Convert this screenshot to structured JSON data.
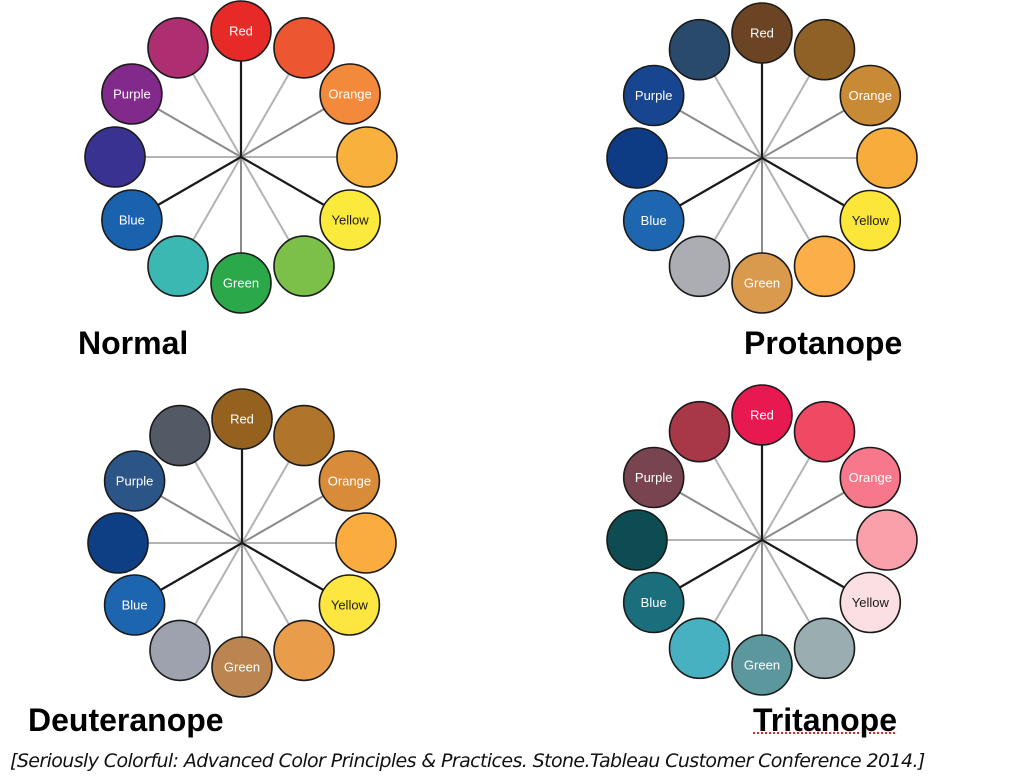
{
  "wheels": [
    {
      "id": "normal",
      "title": "Normal",
      "slots": [
        {
          "label": "Red",
          "fill": "#e52a28",
          "text": "#ffffff"
        },
        {
          "label": "",
          "fill": "#ec5630",
          "text": "#ffffff"
        },
        {
          "label": "Orange",
          "fill": "#f3893a",
          "text": "#ffffff"
        },
        {
          "label": "",
          "fill": "#f8b13c",
          "text": "#ffffff"
        },
        {
          "label": "Yellow",
          "fill": "#fbe93c",
          "text": "#1a1a1a"
        },
        {
          "label": "",
          "fill": "#7cc04a",
          "text": "#ffffff"
        },
        {
          "label": "Green",
          "fill": "#2ba84a",
          "text": "#ffffff"
        },
        {
          "label": "",
          "fill": "#3bb8b2",
          "text": "#ffffff"
        },
        {
          "label": "Blue",
          "fill": "#1a62ad",
          "text": "#ffffff"
        },
        {
          "label": "",
          "fill": "#383391",
          "text": "#ffffff"
        },
        {
          "label": "Purple",
          "fill": "#812a8b",
          "text": "#ffffff"
        },
        {
          "label": "",
          "fill": "#ae2e72",
          "text": "#ffffff"
        }
      ]
    },
    {
      "id": "protanope",
      "title": "Protanope",
      "slots": [
        {
          "label": "Red",
          "fill": "#6b4423",
          "text": "#ffffff"
        },
        {
          "label": "",
          "fill": "#8f6126",
          "text": "#ffffff"
        },
        {
          "label": "Orange",
          "fill": "#c88a35",
          "text": "#ffffff"
        },
        {
          "label": "",
          "fill": "#f8ac3b",
          "text": "#ffffff"
        },
        {
          "label": "Yellow",
          "fill": "#fde63a",
          "text": "#1a1a1a"
        },
        {
          "label": "",
          "fill": "#fcae48",
          "text": "#ffffff"
        },
        {
          "label": "Green",
          "fill": "#d99a4e",
          "text": "#ffffff"
        },
        {
          "label": "",
          "fill": "#abadb3",
          "text": "#ffffff"
        },
        {
          "label": "Blue",
          "fill": "#1e67b0",
          "text": "#ffffff"
        },
        {
          "label": "",
          "fill": "#0e3c84",
          "text": "#ffffff"
        },
        {
          "label": "Purple",
          "fill": "#17458f",
          "text": "#ffffff"
        },
        {
          "label": "",
          "fill": "#2a4a6c",
          "text": "#ffffff"
        }
      ]
    },
    {
      "id": "deuteranope",
      "title": "Deuteranope",
      "slots": [
        {
          "label": "Red",
          "fill": "#94611f",
          "text": "#ffffff"
        },
        {
          "label": "",
          "fill": "#b0752a",
          "text": "#ffffff"
        },
        {
          "label": "Orange",
          "fill": "#d88b38",
          "text": "#ffffff"
        },
        {
          "label": "",
          "fill": "#fbac3e",
          "text": "#ffffff"
        },
        {
          "label": "Yellow",
          "fill": "#fde640",
          "text": "#1a1a1a"
        },
        {
          "label": "",
          "fill": "#e99d4b",
          "text": "#ffffff"
        },
        {
          "label": "Green",
          "fill": "#ba8550",
          "text": "#ffffff"
        },
        {
          "label": "",
          "fill": "#9ea2ae",
          "text": "#ffffff"
        },
        {
          "label": "Blue",
          "fill": "#1e65b0",
          "text": "#ffffff"
        },
        {
          "label": "",
          "fill": "#0e3f85",
          "text": "#ffffff"
        },
        {
          "label": "Purple",
          "fill": "#2b5487",
          "text": "#ffffff"
        },
        {
          "label": "",
          "fill": "#535a66",
          "text": "#ffffff"
        }
      ]
    },
    {
      "id": "tritanope",
      "title": "Tritanope",
      "slots": [
        {
          "label": "Red",
          "fill": "#e81950",
          "text": "#ffffff"
        },
        {
          "label": "",
          "fill": "#ef4964",
          "text": "#ffffff"
        },
        {
          "label": "Orange",
          "fill": "#f6788a",
          "text": "#ffffff"
        },
        {
          "label": "",
          "fill": "#f9a0aa",
          "text": "#ffffff"
        },
        {
          "label": "Yellow",
          "fill": "#fcdfe2",
          "text": "#1a1a1a"
        },
        {
          "label": "",
          "fill": "#9aaeb2",
          "text": "#ffffff"
        },
        {
          "label": "Green",
          "fill": "#5d979e",
          "text": "#ffffff"
        },
        {
          "label": "",
          "fill": "#47b1c1",
          "text": "#ffffff"
        },
        {
          "label": "Blue",
          "fill": "#1b6f7c",
          "text": "#ffffff"
        },
        {
          "label": "",
          "fill": "#0d4c52",
          "text": "#ffffff"
        },
        {
          "label": "Purple",
          "fill": "#784450",
          "text": "#ffffff"
        },
        {
          "label": "",
          "fill": "#a83748",
          "text": "#ffffff"
        }
      ]
    }
  ],
  "citation": "[Seriously Colorful: Advanced Color Principles & Practices. Stone.Tableau Customer Conference 2014.]",
  "colors": {
    "spoke_primary": "#1a1a1a",
    "spoke_secondary": "#8a8a8a",
    "spoke_tertiary": "#b3b3b3",
    "circle_stroke": "#1a1a1a"
  }
}
